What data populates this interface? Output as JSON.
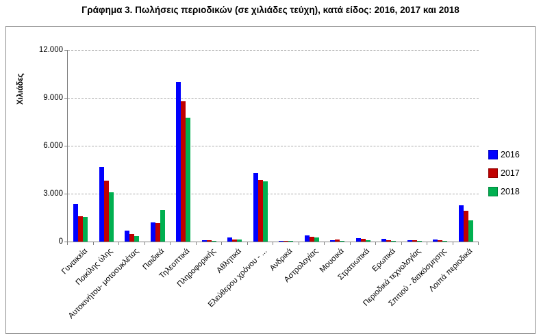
{
  "title": "Γράφημα 3. Πωλήσεις περιοδικών (σε χιλιάδες τεύχη), κατά είδος: 2016, 2017 και 2018",
  "chart_data": {
    "type": "bar",
    "title": "Γράφημα 3. Πωλήσεις περιοδικών (σε χιλιάδες τεύχη), κατά είδος: 2016, 2017 και 2018",
    "y_axis_title": "Χιλιάδες",
    "ylim": [
      0,
      12000
    ],
    "y_tick_step": 3000,
    "y_tick_labels": [
      "0",
      "3.000",
      "6.000",
      "9.000",
      "12.000"
    ],
    "grid": "horizontal, dashed, on",
    "legend_position": "right",
    "categories": [
      "Γυναικεία",
      "Ποικίλης ύλης",
      "Αυτοκινήτου- μοτοσυκλέτας",
      "Παιδικά",
      "Τηλεοπτικά",
      "Πληροφορικής",
      "Αθλητικά",
      "Ελεύθερου χρόνου - ...",
      "Ανδρικά",
      "Αστρολογίας",
      "Μουσικά",
      "Στρατιωτικά",
      "Ερωτικά",
      "Περιοδικά τεχνολογίας",
      "Σπιτιού - διακόσμησης",
      "Λοιπά περιοδικά"
    ],
    "series": [
      {
        "name": "2016",
        "color": "#0000FE",
        "values": [
          2350,
          4650,
          690,
          1190,
          10000,
          80,
          250,
          4300,
          50,
          400,
          100,
          220,
          160,
          90,
          120,
          2280
        ]
      },
      {
        "name": "2017",
        "color": "#C00000",
        "values": [
          1600,
          3800,
          470,
          1150,
          8800,
          70,
          120,
          3850,
          45,
          320,
          110,
          150,
          100,
          70,
          80,
          1910
        ]
      },
      {
        "name": "2018",
        "color": "#00B050",
        "values": [
          1550,
          3100,
          350,
          1960,
          7750,
          40,
          130,
          3770,
          30,
          270,
          50,
          80,
          60,
          40,
          40,
          1330
        ]
      }
    ],
    "colors": {
      "gridline": "#A9A9A9",
      "axis": "#808080",
      "background": "#FFFFFF"
    }
  }
}
